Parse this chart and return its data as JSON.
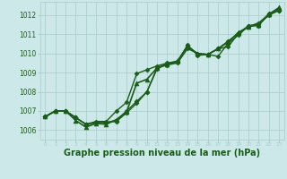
{
  "background_color": "#cce8e8",
  "grid_color": "#aacccc",
  "line_color": "#1a5c1a",
  "marker_color": "#1a5c1a",
  "xlabel": "Graphe pression niveau de la mer (hPa)",
  "xlabel_fontsize": 7.0,
  "xlabel_color": "#1a5c1a",
  "xlim": [
    -0.5,
    23.5
  ],
  "ylim": [
    1005.5,
    1012.7
  ],
  "yticks": [
    1006,
    1007,
    1008,
    1009,
    1010,
    1011,
    1012
  ],
  "ytick_fontsize": 5.5,
  "xticks": [
    0,
    1,
    2,
    3,
    4,
    5,
    6,
    7,
    8,
    9,
    10,
    11,
    12,
    13,
    14,
    15,
    16,
    17,
    18,
    19,
    20,
    21,
    22,
    23
  ],
  "xtick_fontsize": 4.2,
  "lines": [
    {
      "x": [
        0,
        1,
        2,
        3,
        4,
        5,
        6,
        7,
        8,
        9,
        10,
        11,
        12,
        13,
        14,
        15,
        16,
        17,
        18,
        19,
        20,
        21,
        22,
        23
      ],
      "y": [
        1006.7,
        1007.0,
        1007.0,
        1006.65,
        1006.3,
        1006.4,
        1006.4,
        1006.45,
        1006.9,
        1007.4,
        1008.0,
        1009.25,
        1009.4,
        1009.5,
        1010.25,
        1010.0,
        1009.95,
        1009.85,
        1010.55,
        1010.95,
        1011.45,
        1011.55,
        1012.0,
        1012.25
      ],
      "marker": "D",
      "markersize": 2.5,
      "linewidth": 1.0
    },
    {
      "x": [
        0,
        1,
        2,
        3,
        4,
        5,
        6,
        7,
        8,
        9,
        10,
        11,
        12,
        13,
        14,
        15,
        16,
        17,
        18,
        19,
        20,
        21,
        22,
        23
      ],
      "y": [
        1006.7,
        1007.0,
        1007.0,
        1006.65,
        1006.3,
        1006.4,
        1006.4,
        1006.5,
        1007.0,
        1007.5,
        1008.0,
        1009.2,
        1009.45,
        1009.55,
        1010.45,
        1009.9,
        1009.95,
        1010.25,
        1010.35,
        1011.05,
        1011.45,
        1011.45,
        1012.1,
        1012.25
      ],
      "marker": "D",
      "markersize": 2.5,
      "linewidth": 1.0
    },
    {
      "x": [
        0,
        1,
        2,
        3,
        4,
        5,
        6,
        7,
        8,
        9,
        10,
        11,
        12,
        13,
        14,
        15,
        16,
        17,
        18,
        19,
        20,
        21,
        22,
        23
      ],
      "y": [
        1006.7,
        1007.0,
        1007.0,
        1006.5,
        1006.15,
        1006.35,
        1006.3,
        1006.55,
        1006.95,
        1008.45,
        1008.65,
        1009.25,
        1009.45,
        1009.6,
        1010.35,
        1010.0,
        1009.95,
        1010.25,
        1010.6,
        1011.1,
        1011.4,
        1011.5,
        1012.05,
        1012.4
      ],
      "marker": "^",
      "markersize": 3.5,
      "linewidth": 1.2
    },
    {
      "x": [
        0,
        1,
        2,
        3,
        4,
        5,
        6,
        7,
        8,
        9,
        10,
        11,
        12,
        13,
        14,
        15,
        16,
        17,
        18,
        19,
        20,
        21,
        22,
        23
      ],
      "y": [
        1006.7,
        1007.0,
        1007.0,
        1006.65,
        1006.3,
        1006.45,
        1006.45,
        1007.0,
        1007.45,
        1008.95,
        1009.15,
        1009.35,
        1009.5,
        1009.6,
        1010.4,
        1009.95,
        1009.95,
        1010.25,
        1010.65,
        1011.05,
        1011.4,
        1011.6,
        1012.05,
        1012.3
      ],
      "marker": "D",
      "markersize": 2.5,
      "linewidth": 1.0
    }
  ]
}
